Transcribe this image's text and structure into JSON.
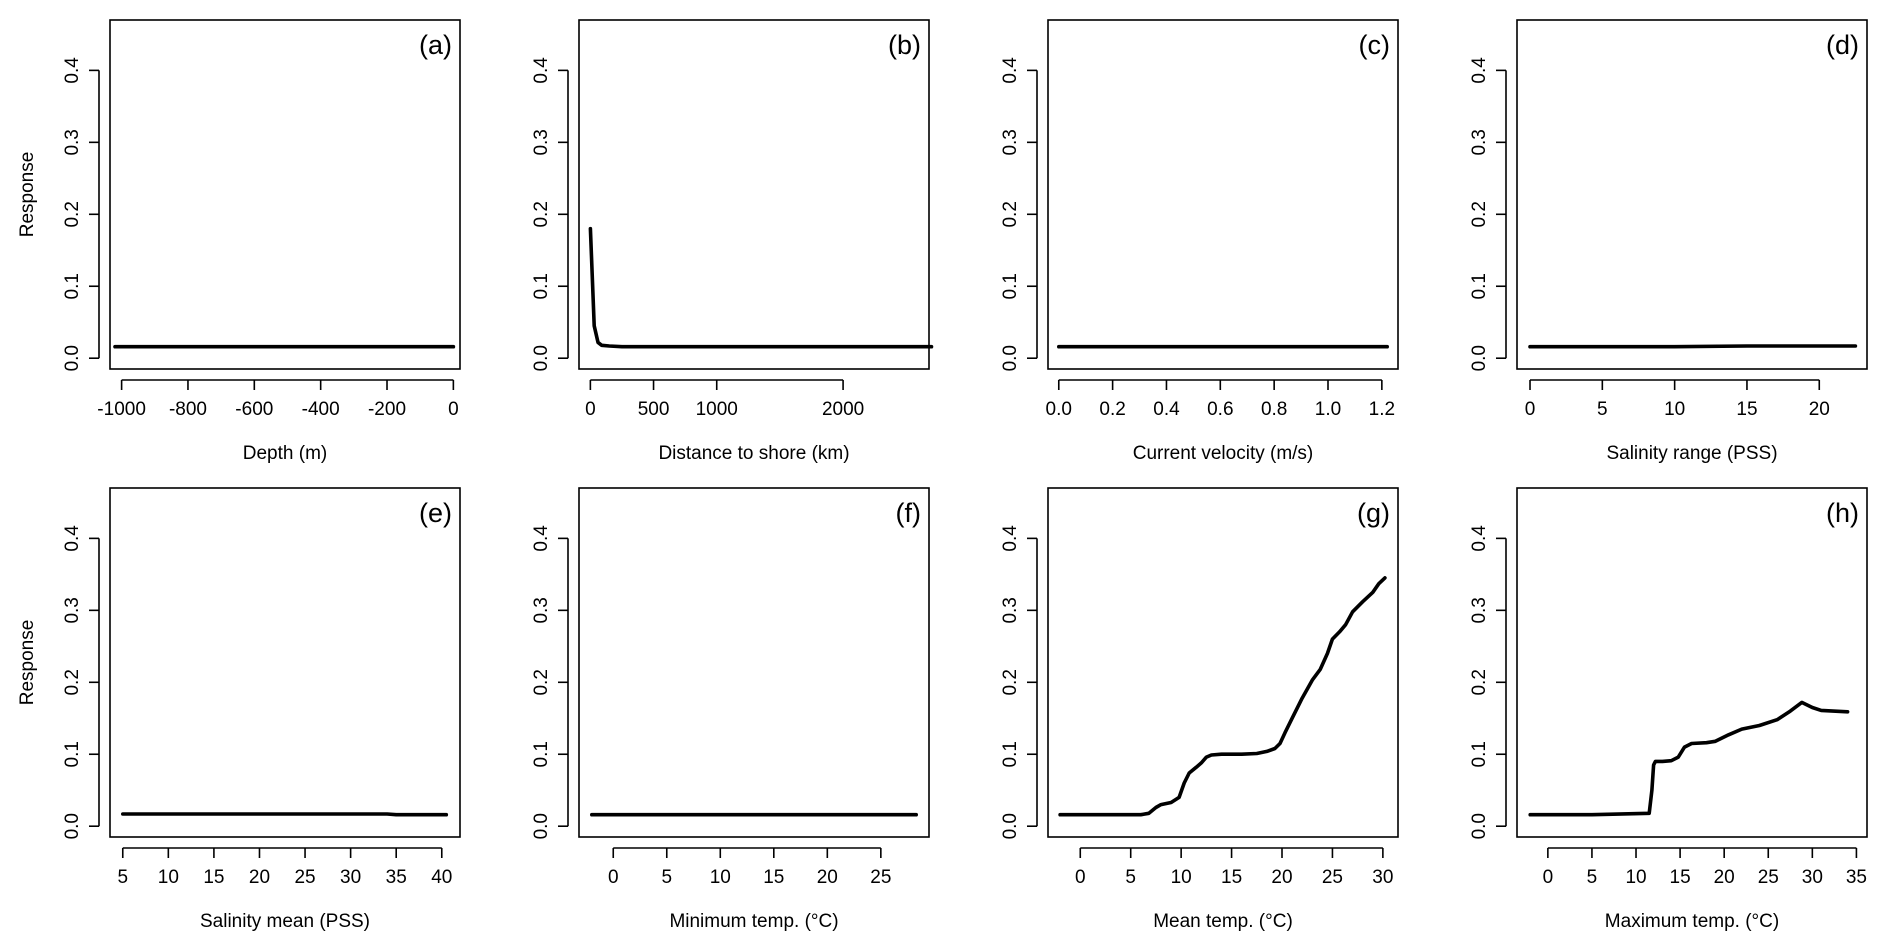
{
  "chart_data": [
    {
      "type": "line",
      "panel": "(a)",
      "xlabel": "Depth (m)",
      "ylabel": "Response",
      "xlim": [
        -1035,
        20
      ],
      "ylim": [
        -0.015,
        0.47
      ],
      "xticks": [
        -1000,
        -800,
        -600,
        -400,
        -200,
        0
      ],
      "xtick_labels": [
        "-1000",
        "-800",
        "-600",
        "-400",
        "-200",
        "0"
      ],
      "yticks": [
        0.0,
        0.1,
        0.2,
        0.3,
        0.4
      ],
      "ytick_labels": [
        "0.0",
        "0.1",
        "0.2",
        "0.3",
        "0.4"
      ],
      "x": [
        -1020,
        -800,
        -600,
        -400,
        -200,
        0
      ],
      "y": [
        0.016,
        0.016,
        0.016,
        0.016,
        0.016,
        0.016
      ]
    },
    {
      "type": "line",
      "panel": "(b)",
      "xlabel": "Distance to shore (km)",
      "ylabel": "",
      "xlim": [
        -90,
        2680
      ],
      "ylim": [
        -0.015,
        0.47
      ],
      "xticks": [
        0,
        500,
        1000,
        2000
      ],
      "xtick_labels": [
        "0",
        "500",
        "1000",
        "2000"
      ],
      "yticks": [
        0.0,
        0.1,
        0.2,
        0.3,
        0.4
      ],
      "ytick_labels": [
        "0.0",
        "0.1",
        "0.2",
        "0.3",
        "0.4"
      ],
      "x": [
        0,
        30,
        60,
        90,
        150,
        250,
        500,
        1000,
        2000,
        2700
      ],
      "y": [
        0.18,
        0.045,
        0.022,
        0.018,
        0.017,
        0.016,
        0.016,
        0.016,
        0.016,
        0.016
      ]
    },
    {
      "type": "line",
      "panel": "(c)",
      "xlabel": "Current velocity (m/s)",
      "ylabel": "",
      "xlim": [
        -0.04,
        1.26
      ],
      "ylim": [
        -0.015,
        0.47
      ],
      "xticks": [
        0.0,
        0.2,
        0.4,
        0.6,
        0.8,
        1.0,
        1.2
      ],
      "xtick_labels": [
        "0.0",
        "0.2",
        "0.4",
        "0.6",
        "0.8",
        "1.0",
        "1.2"
      ],
      "yticks": [
        0.0,
        0.1,
        0.2,
        0.3,
        0.4
      ],
      "ytick_labels": [
        "0.0",
        "0.1",
        "0.2",
        "0.3",
        "0.4"
      ],
      "x": [
        0.0,
        0.3,
        0.6,
        0.9,
        1.22
      ],
      "y": [
        0.016,
        0.016,
        0.016,
        0.016,
        0.016
      ]
    },
    {
      "type": "line",
      "panel": "(d)",
      "xlabel": "Salinity range (PSS)",
      "ylabel": "",
      "xlim": [
        -0.9,
        23.3
      ],
      "ylim": [
        -0.015,
        0.47
      ],
      "xticks": [
        0,
        5,
        10,
        15,
        20
      ],
      "xtick_labels": [
        "0",
        "5",
        "10",
        "15",
        "20"
      ],
      "yticks": [
        0.0,
        0.1,
        0.2,
        0.3,
        0.4
      ],
      "ytick_labels": [
        "0.0",
        "0.1",
        "0.2",
        "0.3",
        "0.4"
      ],
      "x": [
        0,
        5,
        10,
        15,
        20,
        22.5
      ],
      "y": [
        0.016,
        0.016,
        0.016,
        0.017,
        0.017,
        0.017
      ]
    },
    {
      "type": "line",
      "panel": "(e)",
      "xlabel": "Salinity mean (PSS)",
      "ylabel": "Response",
      "xlim": [
        3.6,
        42.0
      ],
      "ylim": [
        -0.015,
        0.47
      ],
      "xticks": [
        5,
        10,
        15,
        20,
        25,
        30,
        35,
        40
      ],
      "xtick_labels": [
        "5",
        "10",
        "15",
        "20",
        "25",
        "30",
        "35",
        "40"
      ],
      "yticks": [
        0.0,
        0.1,
        0.2,
        0.3,
        0.4
      ],
      "ytick_labels": [
        "0.0",
        "0.1",
        "0.2",
        "0.3",
        "0.4"
      ],
      "x": [
        5,
        15,
        25,
        34,
        35,
        40.5
      ],
      "y": [
        0.017,
        0.017,
        0.017,
        0.017,
        0.016,
        0.016
      ]
    },
    {
      "type": "line",
      "panel": "(f)",
      "xlabel": "Minimum temp. (°C)",
      "ylabel": "",
      "xlim": [
        -3.2,
        29.5
      ],
      "ylim": [
        -0.015,
        0.47
      ],
      "xticks": [
        0,
        5,
        10,
        15,
        20,
        25
      ],
      "xtick_labels": [
        "0",
        "5",
        "10",
        "15",
        "20",
        "25"
      ],
      "yticks": [
        0.0,
        0.1,
        0.2,
        0.3,
        0.4
      ],
      "ytick_labels": [
        "0.0",
        "0.1",
        "0.2",
        "0.3",
        "0.4"
      ],
      "x": [
        -2,
        5,
        15,
        25,
        28.3
      ],
      "y": [
        0.016,
        0.016,
        0.016,
        0.016,
        0.016
      ]
    },
    {
      "type": "line",
      "panel": "(g)",
      "xlabel": "Mean temp. (°C)",
      "ylabel": "",
      "xlim": [
        -3.2,
        31.5
      ],
      "ylim": [
        -0.015,
        0.47
      ],
      "xticks": [
        0,
        5,
        10,
        15,
        20,
        25,
        30
      ],
      "xtick_labels": [
        "0",
        "5",
        "10",
        "15",
        "20",
        "25",
        "30"
      ],
      "yticks": [
        0.0,
        0.1,
        0.2,
        0.3,
        0.4
      ],
      "ytick_labels": [
        "0.0",
        "0.1",
        "0.2",
        "0.3",
        "0.4"
      ],
      "x": [
        -2,
        0,
        3,
        6,
        6.8,
        7.5,
        8,
        9,
        9.8,
        10.3,
        10.8,
        11.5,
        12,
        12.5,
        13,
        14,
        16,
        17.5,
        18.5,
        19.3,
        19.8,
        20.3,
        21,
        22,
        23,
        23.8,
        24.5,
        25,
        25.7,
        26.3,
        27,
        28,
        29,
        29.6,
        30.2
      ],
      "y": [
        0.016,
        0.016,
        0.016,
        0.016,
        0.018,
        0.026,
        0.03,
        0.033,
        0.04,
        0.06,
        0.074,
        0.082,
        0.088,
        0.096,
        0.099,
        0.1,
        0.1,
        0.101,
        0.104,
        0.108,
        0.115,
        0.13,
        0.15,
        0.178,
        0.203,
        0.218,
        0.24,
        0.26,
        0.27,
        0.28,
        0.298,
        0.312,
        0.325,
        0.337,
        0.345
      ]
    },
    {
      "type": "line",
      "panel": "(h)",
      "xlabel": "Maximum temp. (°C)",
      "ylabel": "",
      "xlim": [
        -3.5,
        36.2
      ],
      "ylim": [
        -0.015,
        0.47
      ],
      "xticks": [
        0,
        5,
        10,
        15,
        20,
        25,
        30,
        35
      ],
      "xtick_labels": [
        "0",
        "5",
        "10",
        "15",
        "20",
        "25",
        "30",
        "35"
      ],
      "yticks": [
        0.0,
        0.1,
        0.2,
        0.3,
        0.4
      ],
      "ytick_labels": [
        "0.0",
        "0.1",
        "0.2",
        "0.3",
        "0.4"
      ],
      "x": [
        -2,
        5,
        11.5,
        11.8,
        12,
        12.2,
        13,
        14,
        14.8,
        15.5,
        16.3,
        18,
        19,
        20.5,
        22,
        24,
        26,
        27.5,
        28.8,
        30,
        31,
        34
      ],
      "y": [
        0.016,
        0.016,
        0.018,
        0.05,
        0.085,
        0.09,
        0.09,
        0.091,
        0.096,
        0.11,
        0.115,
        0.116,
        0.118,
        0.127,
        0.135,
        0.14,
        0.148,
        0.16,
        0.172,
        0.165,
        0.161,
        0.159
      ]
    }
  ]
}
